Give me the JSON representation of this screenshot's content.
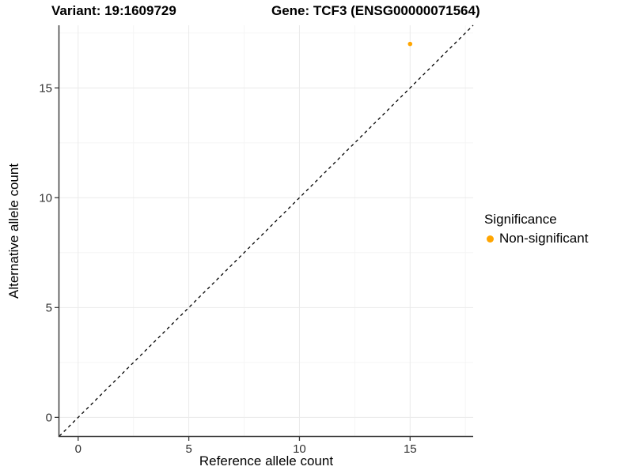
{
  "header": {
    "title_left": "Variant: 19:1609729",
    "title_right": "Gene: TCF3 (ENSG00000071564)"
  },
  "chart_data": {
    "type": "scatter",
    "title": "Variant: 19:1609729 — Gene: TCF3 (ENSG00000071564)",
    "xlabel": "Reference allele count",
    "ylabel": "Alternative allele count",
    "xlim": [
      -0.85,
      17.85
    ],
    "ylim": [
      -0.85,
      17.85
    ],
    "x_ticks": [
      0,
      5,
      10,
      15
    ],
    "y_ticks": [
      0,
      5,
      10,
      15
    ],
    "x_minor_ticks": [
      2.5,
      7.5,
      12.5,
      17.5
    ],
    "y_minor_ticks": [
      2.5,
      7.5,
      12.5,
      17.5
    ],
    "grid": "major+minor",
    "series": [
      {
        "name": "Non-significant",
        "color": "#FFA500",
        "points": [
          {
            "x": 15,
            "y": 17
          }
        ]
      }
    ],
    "reference_line": {
      "slope": 1,
      "intercept": 0,
      "style": "dashed",
      "color": "#000000"
    },
    "legend": {
      "title": "Significance",
      "position": "right",
      "entries": [
        {
          "label": "Non-significant",
          "color": "#FFA500"
        }
      ]
    },
    "colors": {
      "grid_major": "#eaeaea",
      "grid_minor": "#f5f5f5",
      "axis_line": "#3c3c3c",
      "tick_label": "#303030",
      "background": "#ffffff"
    }
  }
}
